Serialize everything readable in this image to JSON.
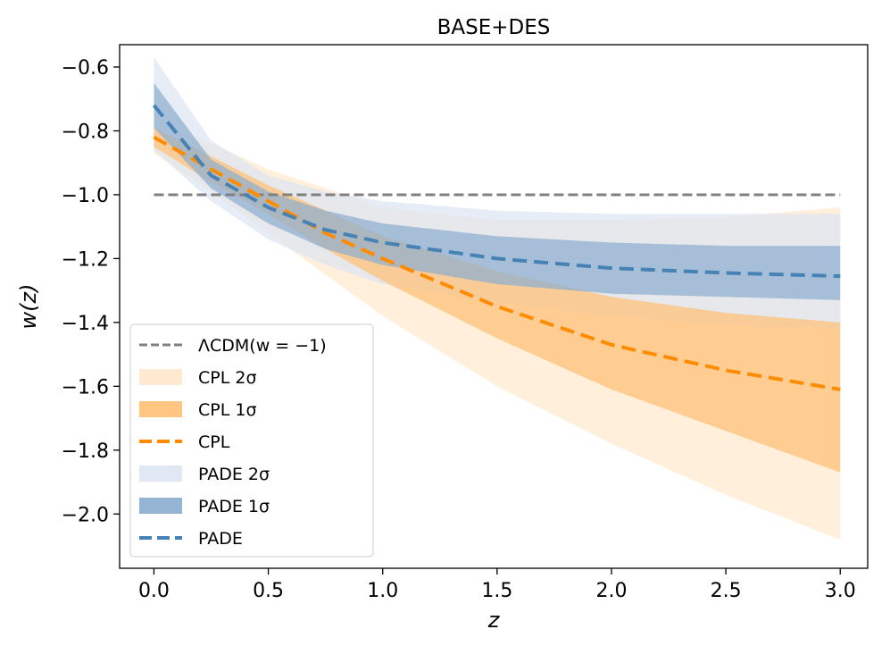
{
  "chart_data": {
    "type": "line",
    "title": "BASE+DES",
    "xlabel": "z",
    "ylabel": "w(z)",
    "xlim": [
      -0.15,
      3.12
    ],
    "ylim": [
      -2.17,
      -0.53
    ],
    "xticks": [
      "0.0",
      "0.5",
      "1.0",
      "1.5",
      "2.0",
      "2.5",
      "3.0"
    ],
    "xtick_values": [
      0,
      0.5,
      1.0,
      1.5,
      2.0,
      2.5,
      3.0
    ],
    "yticks": [
      "−2.0",
      "−1.8",
      "−1.6",
      "−1.4",
      "−1.2",
      "−1.0",
      "−0.8",
      "−0.6"
    ],
    "ytick_values": [
      -2.0,
      -1.8,
      -1.6,
      -1.4,
      -1.2,
      -1.0,
      -0.8,
      -0.6
    ],
    "grid": false,
    "legend_position": "lower-left",
    "legend": [
      {
        "label": "ΛCDM(w = −1)",
        "kind": "line",
        "color": "#808080"
      },
      {
        "label": "CPL 2σ",
        "kind": "band",
        "color": "#ffe8cc"
      },
      {
        "label": "CPL 1σ",
        "kind": "band",
        "color": "#ffbf73"
      },
      {
        "label": "CPL",
        "kind": "line",
        "color": "#ff8c00"
      },
      {
        "label": "PADE 2σ",
        "kind": "band",
        "color": "#dce6f2"
      },
      {
        "label": "PADE 1σ",
        "kind": "band",
        "color": "#8aaccf"
      },
      {
        "label": "PADE",
        "kind": "line",
        "color": "#4682b4"
      }
    ],
    "x": [
      0.0,
      0.25,
      0.5,
      0.75,
      1.0,
      1.5,
      2.0,
      2.5,
      3.0
    ],
    "lcdm": {
      "name": "ΛCDM(w = −1)",
      "value": -1.0,
      "color": "#808080"
    },
    "series": [
      {
        "name": "CPL",
        "color": "#ff8c00",
        "values": [
          -0.82,
          -0.92,
          -1.02,
          -1.12,
          -1.2,
          -1.35,
          -1.47,
          -1.55,
          -1.61
        ],
        "band_1sigma": {
          "lower": [
            -0.85,
            -0.96,
            -1.06,
            -1.17,
            -1.27,
            -1.45,
            -1.61,
            -1.74,
            -1.87
          ],
          "upper": [
            -0.79,
            -0.88,
            -0.97,
            -1.05,
            -1.13,
            -1.24,
            -1.32,
            -1.37,
            -1.4
          ],
          "color": "#ffbf73"
        },
        "band_2sigma": {
          "lower": [
            -0.87,
            -0.99,
            -1.12,
            -1.25,
            -1.38,
            -1.6,
            -1.78,
            -1.94,
            -2.08
          ],
          "upper": [
            -0.77,
            -0.84,
            -0.92,
            -0.98,
            -1.04,
            -1.08,
            -1.08,
            -1.07,
            -1.04
          ],
          "color": "#ffe8cc"
        }
      },
      {
        "name": "PADE",
        "color": "#4682b4",
        "values": [
          -0.72,
          -0.94,
          -1.04,
          -1.11,
          -1.15,
          -1.2,
          -1.23,
          -1.245,
          -1.255
        ],
        "band_1sigma": {
          "lower": [
            -0.79,
            -0.98,
            -1.09,
            -1.17,
            -1.22,
            -1.28,
            -1.31,
            -1.32,
            -1.33
          ],
          "upper": [
            -0.65,
            -0.89,
            -0.99,
            -1.05,
            -1.09,
            -1.13,
            -1.15,
            -1.16,
            -1.16
          ],
          "color": "#8aaccf"
        },
        "band_2sigma": {
          "lower": [
            -0.86,
            -1.02,
            -1.14,
            -1.22,
            -1.28,
            -1.34,
            -1.38,
            -1.41,
            -1.42
          ],
          "upper": [
            -0.57,
            -0.83,
            -0.94,
            -0.99,
            -1.02,
            -1.05,
            -1.06,
            -1.06,
            -1.06
          ],
          "color": "#dce6f2"
        }
      }
    ]
  }
}
